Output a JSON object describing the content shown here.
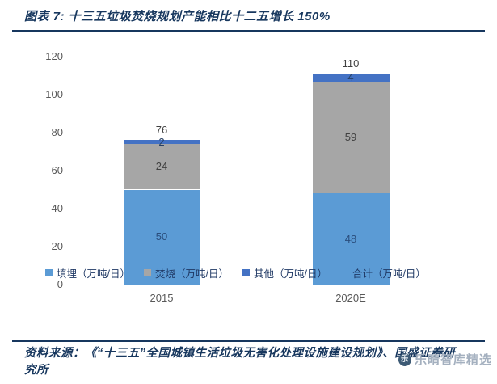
{
  "header": {
    "title": "图表 7:  十三五垃圾焚烧规划产能相比十二五增长 150%"
  },
  "colors": {
    "accent_navy": "#17375E",
    "bar_landfill": "#5B9BD5",
    "bar_incineration": "#A6A6A6",
    "bar_other": "#4472C4",
    "axis_text": "#595959",
    "baseline": "#D6D6D6"
  },
  "chart_data": {
    "type": "bar",
    "stacked": true,
    "title": "十三五垃圾焚烧规划产能相比十二五增长 150%",
    "categories": [
      "2015",
      "2020E"
    ],
    "series": [
      {
        "name": "填埋（万吨/日）",
        "values": [
          50,
          48
        ],
        "color": "#5B9BD5",
        "label_color": "#2A4D7C"
      },
      {
        "name": "焚烧（万吨/日）",
        "values": [
          24,
          59
        ],
        "color": "#A6A6A6",
        "label_color": "#404040"
      },
      {
        "name": "其他（万吨/日）",
        "values": [
          2,
          4
        ],
        "color": "#4472C4",
        "label_color": "#263F63"
      }
    ],
    "totals": {
      "name": "合计（万吨/日）",
      "values": [
        76,
        110
      ],
      "swatch_color": "transparent"
    },
    "xlabel": "",
    "ylabel": "",
    "ylim": [
      0,
      120
    ],
    "ytick_step": 20,
    "grid": false,
    "legend_position": "bottom"
  },
  "footer": {
    "source": "资料来源：《“十三五”全国城镇生活垃圾无害化处理设施建设规划》、国盛证券研究所"
  },
  "watermark": {
    "text": "乐晴智库精选",
    "icon_glyph": "乐"
  }
}
